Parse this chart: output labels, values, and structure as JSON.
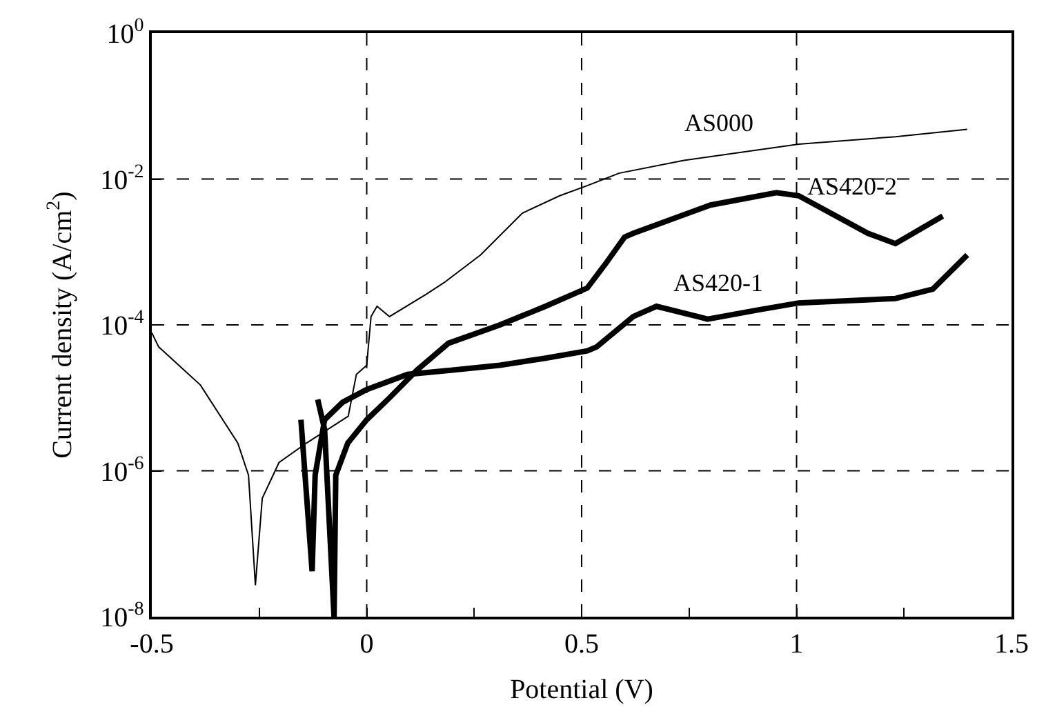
{
  "chart_data": {
    "type": "line",
    "xlabel": "Potential (V)",
    "ylabel": "Current density (A/cm$^{2}$)",
    "log": "y",
    "grid": true,
    "legend": false,
    "marker": "none",
    "line_style": "solid",
    "xlim": [
      -0.5,
      1.5
    ],
    "xticks": [
      -0.5,
      {
        "value": -0.25,
        "label": null
      },
      0,
      {
        "value": 0.25,
        "label": null
      },
      0.5,
      {
        "value": 0.75,
        "label": null
      },
      1,
      {
        "value": 1.25,
        "label": null
      },
      1.5
    ],
    "ylim": [
      1e-08,
      1
    ],
    "yticks": [
      {
        "value": 1e-08,
        "label": "10$^{-8}$"
      },
      {
        "value": 1e-06,
        "label": "10$^{-6}$"
      },
      {
        "value": 0.0001,
        "label": "10$^{-4}$"
      },
      {
        "value": 0.01,
        "label": "10$^{-2}$"
      },
      {
        "value": 1,
        "label": "10$^{0}$"
      }
    ],
    "series": [
      {
        "name": "AS000",
        "color": "#000000",
        "x": [
          -0.5,
          -0.484,
          -0.387,
          -0.3,
          -0.275,
          -0.259,
          -0.243,
          -0.204,
          -0.14,
          -0.076,
          -0.043,
          -0.024,
          0,
          0.01,
          0.024,
          0.053,
          0.137,
          0.18,
          0.265,
          0.362,
          0.449,
          0.513,
          0.587,
          0.738,
          1.005,
          1.23,
          1.397
        ],
        "values": [
          7.8e-05,
          5e-05,
          1.5e-05,
          2.4e-06,
          8.7e-07,
          2.7e-08,
          4.2e-07,
          1.3e-06,
          2.4e-06,
          4.2e-06,
          5.6e-06,
          2.1e-05,
          2.8e-05,
          0.00013,
          0.00018,
          0.00013,
          0.00026,
          0.00038,
          0.00091,
          0.0034,
          0.0059,
          0.0081,
          0.012,
          0.018,
          0.03,
          0.038,
          0.048
        ]
      },
      {
        "name": "AS420-1",
        "color": "#000000",
        "x": [
          -0.153,
          -0.127,
          -0.12,
          -0.098,
          -0.056,
          0,
          0.095,
          0.2,
          0.31,
          0.416,
          0.513,
          0.535,
          0.62,
          0.674,
          0.793,
          0.91,
          1.005,
          1.23,
          1.317,
          1.397
        ],
        "values": [
          5e-06,
          4.2e-08,
          8.7e-07,
          5e-06,
          8.7e-06,
          1.3e-05,
          2.1e-05,
          2.4e-05,
          2.8e-05,
          3.5e-05,
          4.4e-05,
          5e-05,
          0.00013,
          0.00018,
          0.00012,
          0.00016,
          0.0002,
          0.00023,
          0.00031,
          0.00091
        ]
      },
      {
        "name": "AS420-2",
        "color": "#000000",
        "x": [
          -0.114,
          -0.098,
          -0.076,
          -0.072,
          -0.044,
          0,
          0.053,
          0.117,
          0.19,
          0.31,
          0.416,
          0.513,
          0.555,
          0.6,
          0.62,
          0.8,
          0.953,
          1.005,
          1.166,
          1.23,
          1.34
        ],
        "values": [
          9.5e-06,
          3.7e-06,
          1e-08,
          8.7e-07,
          2.4e-06,
          5e-06,
          1e-05,
          2.4e-05,
          5.6e-05,
          0.0001,
          0.00018,
          0.00032,
          0.00068,
          0.0016,
          0.0018,
          0.0044,
          0.0065,
          0.0059,
          0.0018,
          0.0013,
          0.0031
        ]
      }
    ]
  }
}
